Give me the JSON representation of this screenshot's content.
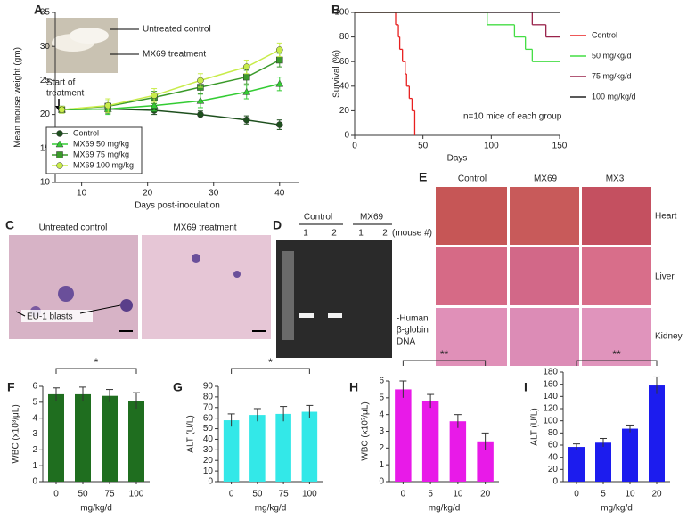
{
  "chart_data": [
    {
      "type": "line",
      "label": "A",
      "xlabel": "Days post-inoculation",
      "ylabel": "Mean mouse weight (gm)",
      "x": [
        7,
        14,
        21,
        28,
        35,
        40
      ],
      "xlim": [
        6,
        43
      ],
      "xticks": [
        10,
        20,
        30,
        40
      ],
      "ylim": [
        10,
        35
      ],
      "yticks": [
        10,
        15,
        20,
        25,
        30,
        35
      ],
      "annotations": [
        "Untreated control",
        "MX69 treatment",
        "Start of",
        "treatment"
      ],
      "series": [
        {
          "name": "Control",
          "color": "#1d4f1d",
          "marker": "circle",
          "values": [
            20.7,
            20.8,
            20.6,
            20,
            19.2,
            18.5
          ],
          "errors": [
            0.5,
            0.6,
            0.6,
            0.5,
            0.6,
            0.7
          ]
        },
        {
          "name": "MX69 50 mg/kg",
          "color": "#33cc33",
          "marker": "triangle",
          "values": [
            20.7,
            20.8,
            21.3,
            22,
            23.3,
            24.5
          ],
          "errors": [
            0.5,
            0.8,
            0.8,
            1,
            1,
            1
          ]
        },
        {
          "name": "MX69 75 mg/kg",
          "color": "#3a9a2a",
          "marker": "square",
          "values": [
            20.7,
            21.2,
            22.5,
            24,
            25.5,
            28
          ],
          "errors": [
            0.5,
            0.8,
            0.9,
            1,
            1,
            1
          ]
        },
        {
          "name": "MX69 100 mg/kg",
          "color": "#c8ec4a",
          "marker": "circle",
          "values": [
            20.7,
            21.3,
            22.8,
            25,
            27,
            29.5
          ],
          "errors": [
            0.5,
            1,
            1,
            1,
            1,
            1
          ]
        }
      ]
    },
    {
      "type": "line",
      "step": true,
      "label": "B",
      "xlabel": "Days",
      "ylabel": "Survival (%)",
      "xlim": [
        0,
        150
      ],
      "xticks": [
        0,
        50,
        100,
        150
      ],
      "ylim": [
        0,
        100
      ],
      "yticks": [
        0,
        20,
        40,
        60,
        80,
        100
      ],
      "annotations": [
        "n=10 mice of each group"
      ],
      "series": [
        {
          "name": "Control",
          "color": "#e82020",
          "x": [
            0,
            30,
            32,
            33,
            35,
            37,
            38,
            40,
            42,
            44
          ],
          "values": [
            100,
            90,
            80,
            70,
            60,
            50,
            40,
            30,
            20,
            0
          ]
        },
        {
          "name": "50 mg/kg/d",
          "color": "#44dd44",
          "x": [
            0,
            97,
            117,
            125,
            130,
            150
          ],
          "values": [
            100,
            90,
            80,
            70,
            60,
            60
          ]
        },
        {
          "name": "75 mg/kg/d",
          "color": "#99224a",
          "x": [
            0,
            130,
            140,
            150
          ],
          "values": [
            100,
            90,
            80,
            80
          ]
        },
        {
          "name": "100 mg/kg/d",
          "color": "#222222",
          "x": [
            0,
            150
          ],
          "values": [
            100,
            100
          ]
        }
      ]
    },
    {
      "type": "bar",
      "label": "F",
      "xlabel": "mg/kg/d",
      "ylabel": "WBC (x10³/μL)",
      "significance": "*",
      "color": "#1f6e1f",
      "categories": [
        "0",
        "50",
        "75",
        "100"
      ],
      "values": [
        5.5,
        5.5,
        5.4,
        5.1
      ],
      "errors": [
        0.4,
        0.45,
        0.4,
        0.5
      ],
      "ylim": [
        0,
        6
      ],
      "yticks": [
        0,
        1,
        2,
        3,
        4,
        5,
        6
      ]
    },
    {
      "type": "bar",
      "label": "G",
      "xlabel": "mg/kg/d",
      "ylabel": "ALT (U/L)",
      "significance": "*",
      "color": "#33e8e8",
      "categories": [
        "0",
        "50",
        "75",
        "100"
      ],
      "values": [
        58,
        63,
        64,
        66
      ],
      "errors": [
        6,
        6,
        7,
        6
      ],
      "ylim": [
        0,
        90
      ],
      "yticks": [
        0,
        10,
        20,
        30,
        40,
        50,
        60,
        70,
        80,
        90
      ]
    },
    {
      "type": "bar",
      "label": "H",
      "xlabel": "mg/kg/d",
      "ylabel": "WBC (x10³/μL)",
      "significance": "**",
      "color": "#e81ae8",
      "categories": [
        "0",
        "5",
        "10",
        "20"
      ],
      "values": [
        5.5,
        4.8,
        3.6,
        2.4
      ],
      "errors": [
        0.5,
        0.4,
        0.4,
        0.5
      ],
      "ylim": [
        0,
        6
      ],
      "yticks": [
        0,
        1,
        2,
        3,
        4,
        5,
        6
      ]
    },
    {
      "type": "bar",
      "label": "I",
      "xlabel": "mg/kg/d",
      "ylabel": "ALT (U/L)",
      "significance": "**",
      "color": "#1c1cee",
      "categories": [
        "0",
        "5",
        "10",
        "20"
      ],
      "values": [
        57,
        64,
        87,
        158
      ],
      "errors": [
        5,
        7,
        6,
        14
      ],
      "ylim": [
        0,
        180
      ],
      "yticks": [
        0,
        20,
        40,
        60,
        80,
        100,
        120,
        140,
        160,
        180
      ]
    }
  ],
  "image_panels": {
    "C": {
      "label": "C",
      "titles": [
        "Untreated control",
        "MX69 treatment"
      ],
      "annotation": "EU-1 blasts"
    },
    "D": {
      "label": "D",
      "groups": [
        "Control",
        "MX69"
      ],
      "lanes": [
        "1",
        "2",
        "1",
        "2"
      ],
      "lane_note": "(mouse #)",
      "band_label": [
        "-Human",
        "β-globin",
        "DNA"
      ]
    },
    "E": {
      "label": "E",
      "columns": [
        "Control",
        "MX69",
        "MX3"
      ],
      "rows": [
        "Heart",
        "Liver",
        "Kidney"
      ]
    }
  }
}
